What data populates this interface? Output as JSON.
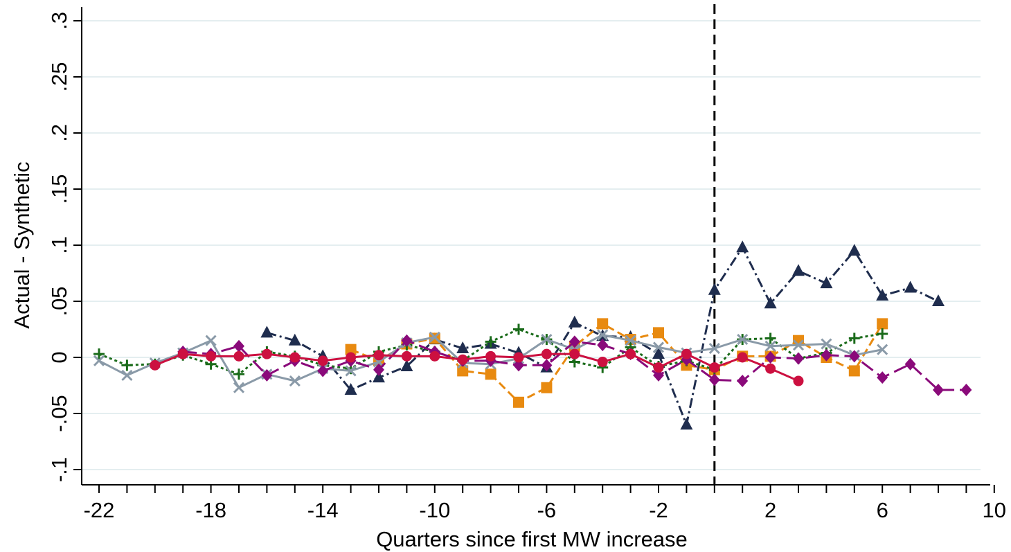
{
  "chart_data": {
    "type": "line",
    "title": "",
    "xlabel": "Quarters since first MW increase",
    "ylabel": "Actual - Synthetic",
    "xlim": [
      -22.6,
      10
    ],
    "ylim": [
      -0.11,
      0.31
    ],
    "x_ticks": [
      -22,
      -18,
      -14,
      -10,
      -6,
      -2,
      2,
      6,
      10
    ],
    "x_tick_labels": [
      "-22",
      "-18",
      "-14",
      "-10",
      "-6",
      "-2",
      "2",
      "6",
      "10"
    ],
    "y_ticks": [
      -0.1,
      -0.05,
      0,
      0.05,
      0.1,
      0.15,
      0.2,
      0.25,
      0.3
    ],
    "y_tick_labels": [
      "-.1",
      "-.05",
      "0",
      ".05",
      ".1",
      ".15",
      ".2",
      ".25",
      ".3"
    ],
    "grid": "horizontal",
    "reference_line_x": 0,
    "series": [
      {
        "color": "#1f2d4e",
        "marker": "triangle",
        "dash": "dash-dot",
        "x": [
          -16,
          -15,
          -14,
          -13,
          -12,
          -11,
          -10,
          -9,
          -8,
          -7,
          -6,
          -5,
          -4,
          -3,
          -2,
          -1,
          0,
          1,
          2,
          3,
          4,
          5,
          6,
          7,
          8
        ],
        "y": [
          0.022,
          0.015,
          0.001,
          -0.029,
          -0.018,
          -0.008,
          0.016,
          0.008,
          0.012,
          0.004,
          -0.009,
          0.031,
          0.019,
          0.018,
          0.003,
          -0.06,
          0.06,
          0.098,
          0.048,
          0.077,
          0.066,
          0.095,
          0.055,
          0.062,
          0.05
        ]
      },
      {
        "color": "#e88a10",
        "marker": "square",
        "dash": "dash",
        "x": [
          -13,
          -12,
          -11,
          -10,
          -9,
          -8,
          -7,
          -6,
          -5,
          -4,
          -3,
          -2,
          -1,
          0,
          1,
          2,
          3,
          4,
          5,
          6
        ],
        "y": [
          0.007,
          -0.003,
          0.012,
          0.017,
          -0.012,
          -0.015,
          -0.04,
          -0.027,
          0.01,
          0.03,
          0.016,
          0.022,
          -0.007,
          -0.011,
          0.001,
          0.001,
          0.015,
          0.0,
          -0.012,
          0.03
        ]
      },
      {
        "color": "#1a6b1a",
        "marker": "plus",
        "dash": "dot",
        "x": [
          -22,
          -21,
          -20,
          -19,
          -18,
          -17,
          -16,
          -15,
          -14,
          -13,
          -12,
          -11,
          -10,
          -9,
          -8,
          -7,
          -6,
          -5,
          -4,
          -3,
          -2,
          -1,
          0,
          1,
          2,
          3,
          4,
          5,
          6
        ],
        "y": [
          0.003,
          -0.007,
          -0.006,
          0.002,
          -0.006,
          -0.015,
          0.005,
          0.001,
          -0.007,
          -0.01,
          0.005,
          0.011,
          0.005,
          -0.003,
          0.014,
          0.025,
          0.016,
          -0.004,
          -0.009,
          0.009,
          -0.008,
          -0.003,
          -0.011,
          0.016,
          0.017,
          -0.001,
          0.004,
          0.017,
          0.021
        ]
      },
      {
        "color": "#8a9aa8",
        "marker": "x",
        "dash": "solid",
        "x": [
          -22,
          -21,
          -20,
          -19,
          -18,
          -17,
          -16,
          -15,
          -14,
          -13,
          -12,
          -11,
          -10,
          -9,
          -8,
          -7,
          -6,
          -5,
          -4,
          -3,
          -2,
          -1,
          0,
          1,
          2,
          3,
          4,
          5,
          6
        ],
        "y": [
          -0.003,
          -0.016,
          -0.005,
          0.004,
          0.015,
          -0.027,
          -0.015,
          -0.021,
          -0.01,
          -0.012,
          -0.004,
          0.013,
          0.018,
          -0.005,
          -0.006,
          -0.001,
          0.016,
          0.007,
          0.02,
          0.015,
          0.009,
          0.004,
          0.008,
          0.016,
          0.01,
          0.011,
          0.012,
          0.002,
          0.007
        ]
      },
      {
        "color": "#8a0a7a",
        "marker": "diamond",
        "dash": "long-dash",
        "x": [
          -19,
          -18,
          -17,
          -16,
          -15,
          -14,
          -13,
          -12,
          -11,
          -10,
          -9,
          -8,
          -7,
          -6,
          -5,
          -4,
          -3,
          -2,
          -1,
          0,
          1,
          2,
          3,
          4,
          5,
          6,
          7,
          8,
          9
        ],
        "y": [
          0.005,
          0.003,
          0.01,
          -0.016,
          -0.003,
          -0.012,
          -0.003,
          -0.011,
          0.015,
          0.005,
          -0.003,
          -0.003,
          -0.007,
          -0.007,
          0.014,
          0.011,
          0.003,
          -0.016,
          -0.002,
          -0.02,
          -0.021,
          0.0,
          -0.001,
          0.002,
          0.001,
          -0.018,
          -0.006,
          -0.029,
          -0.029
        ]
      },
      {
        "color": "#cc1040",
        "marker": "circle",
        "dash": "solid",
        "x": [
          -20,
          -19,
          -18,
          -17,
          -16,
          -15,
          -14,
          -13,
          -12,
          -11,
          -10,
          -9,
          -8,
          -7,
          -6,
          -5,
          -4,
          -3,
          -2,
          -1,
          0,
          1,
          2,
          3
        ],
        "y": [
          -0.007,
          0.003,
          0.001,
          0.001,
          0.003,
          0.0,
          -0.003,
          0.0,
          0.002,
          0.001,
          0.001,
          -0.002,
          0.001,
          0.0,
          0.003,
          0.003,
          -0.004,
          0.003,
          -0.009,
          0.003,
          -0.009,
          0.0,
          -0.01,
          -0.021
        ]
      }
    ]
  }
}
